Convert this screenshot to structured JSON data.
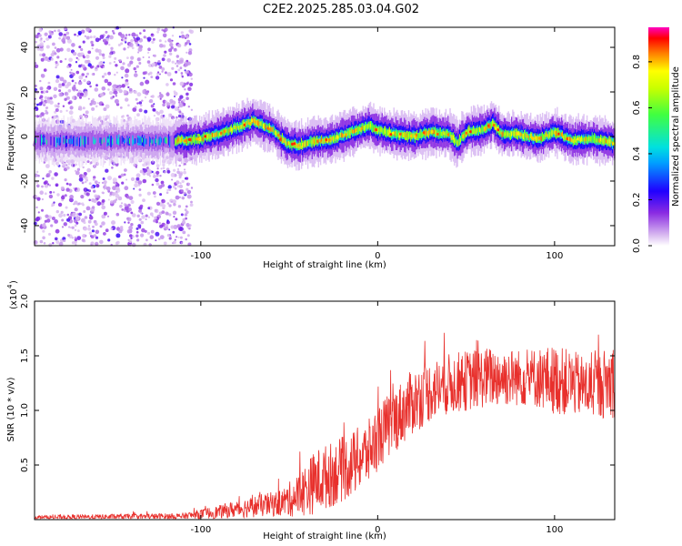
{
  "chart_data": [
    {
      "type": "heatmap",
      "title": "C2E2.2025.285.03.04.G02",
      "xlabel": "Height of straight line (km)",
      "ylabel": "Frequency (Hz)",
      "xlim": [
        -194,
        134
      ],
      "ylim": [
        -49,
        49
      ],
      "xticks": [
        -100,
        0,
        100
      ],
      "yticks": [
        -40,
        -20,
        0,
        20,
        40
      ],
      "colorbar": {
        "label": "Normalized spectral amplitude",
        "range": [
          0.0,
          0.95
        ],
        "ticks": [
          0.0,
          0.2,
          0.4,
          0.6,
          0.8
        ],
        "tick_labels": [
          "0.0",
          "0.2",
          "0.4",
          "0.6",
          "0.8"
        ]
      },
      "ridge": {
        "description_points_x": [
          -115,
          -100,
          -90,
          -80,
          -70,
          -60,
          -52,
          -45,
          -35,
          -25,
          -15,
          -5,
          0,
          10,
          20,
          30,
          40,
          45,
          50,
          60,
          65,
          70,
          80,
          90,
          100,
          110,
          120,
          134
        ],
        "description_points_y": [
          -2,
          -1,
          1,
          4,
          7,
          3,
          -3,
          -4,
          -2,
          -1,
          2,
          5,
          3,
          1,
          0,
          2,
          1,
          -3,
          2,
          3,
          6,
          1,
          1,
          -1,
          2,
          -2,
          -1,
          -3
        ]
      },
      "noise_region_x": [
        -194,
        -105
      ]
    },
    {
      "type": "line",
      "xlabel": "Height of straight line (km)",
      "ylabel": "SNR (10 * v/v)",
      "yscale_label": "(x10",
      "yscale_exp": "4",
      "xlim": [
        -194,
        134
      ],
      "ylim": [
        0.0,
        2.0
      ],
      "xticks": [
        -100,
        0,
        100
      ],
      "yticks": [
        0.5,
        1.0,
        1.5,
        2.0
      ],
      "ytick_labels": [
        "0.5",
        "1.0",
        "1.5",
        "2.0"
      ],
      "series": [
        {
          "name": "SNR",
          "color": "#e8302c",
          "envelope_x": [
            -194,
            -110,
            -90,
            -70,
            -55,
            -45,
            -35,
            -25,
            -15,
            -5,
            0,
            10,
            20,
            30,
            40,
            50,
            60,
            70,
            80,
            90,
            100,
            110,
            120,
            134
          ],
          "envelope_mean": [
            0.02,
            0.03,
            0.07,
            0.12,
            0.15,
            0.22,
            0.35,
            0.42,
            0.5,
            0.62,
            0.75,
            0.92,
            1.08,
            1.18,
            1.24,
            1.27,
            1.3,
            1.31,
            1.3,
            1.3,
            1.28,
            1.25,
            1.2,
            1.28
          ],
          "envelope_amp": [
            0.02,
            0.03,
            0.06,
            0.1,
            0.12,
            0.2,
            0.3,
            0.3,
            0.3,
            0.3,
            0.3,
            0.3,
            0.3,
            0.28,
            0.28,
            0.28,
            0.28,
            0.28,
            0.26,
            0.28,
            0.32,
            0.3,
            0.28,
            0.35
          ]
        }
      ]
    }
  ]
}
